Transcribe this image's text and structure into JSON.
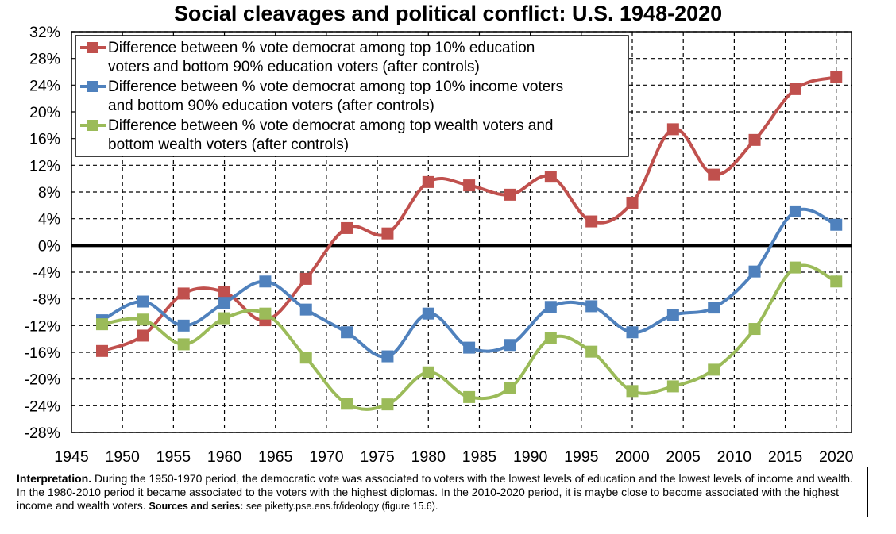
{
  "chart_data": {
    "type": "line",
    "title": "Social cleavages and political conflict: U.S. 1948-2020",
    "x": [
      1948,
      1952,
      1956,
      1960,
      1964,
      1968,
      1972,
      1976,
      1980,
      1984,
      1988,
      1992,
      1996,
      2000,
      2004,
      2008,
      2012,
      2016,
      2020
    ],
    "xlim": [
      1945,
      2020
    ],
    "xticks": [
      "1945",
      "1950",
      "1955",
      "1960",
      "1965",
      "1970",
      "1975",
      "1980",
      "1985",
      "1990",
      "1995",
      "2000",
      "2005",
      "2010",
      "2015",
      "2020"
    ],
    "ylim": [
      -28,
      32
    ],
    "yticks": [
      "-28%",
      "-24%",
      "-20%",
      "-16%",
      "-12%",
      "-8%",
      "-4%",
      "0%",
      "4%",
      "8%",
      "12%",
      "16%",
      "20%",
      "24%",
      "28%",
      "32%"
    ],
    "grid": true,
    "legend_position": "top-left",
    "series": [
      {
        "name": "Difference between % vote democrat among top 10% education voters and bottom 90% education voters (after controls)",
        "legend_lines": [
          "Difference between % vote democrat among top 10% education",
          "voters and bottom 90% education voters (after controls)"
        ],
        "color": "#C0504D",
        "values": [
          -15.8,
          -13.5,
          -7.2,
          -7.0,
          -11.2,
          -5.0,
          2.6,
          1.8,
          9.5,
          9.0,
          7.6,
          10.3,
          3.6,
          6.4,
          17.4,
          10.6,
          15.8,
          23.4,
          25.2
        ]
      },
      {
        "name": "Difference between % vote democrat among top 10% income voters and bottom 90% education voters (after controls)",
        "legend_lines": [
          "Difference between % vote democrat among top 10% income voters",
          "and bottom 90% education voters (after controls)"
        ],
        "color": "#4F81BD",
        "values": [
          -11.2,
          -8.4,
          -12.0,
          -8.6,
          -5.4,
          -9.6,
          -13.0,
          -16.6,
          -10.2,
          -15.3,
          -14.9,
          -9.2,
          -9.1,
          -13.0,
          -10.4,
          -9.3,
          -3.9,
          5.1,
          3.1
        ]
      },
      {
        "name": "Difference between % vote democrat among top wealth voters and bottom wealth voters (after controls)",
        "legend_lines": [
          "Difference between % vote democrat among top wealth voters and",
          "bottom wealth voters (after controls)"
        ],
        "color": "#9BBB59",
        "values": [
          -11.8,
          -11.1,
          -14.8,
          -10.9,
          -10.2,
          -16.8,
          -23.7,
          -23.8,
          -19.0,
          -22.7,
          -21.4,
          -13.9,
          -15.9,
          -21.8,
          -21.1,
          -18.6,
          -12.5,
          -3.3,
          -5.4
        ]
      }
    ]
  },
  "note": {
    "interpretation_label": "Interpretation.",
    "interpretation_text": " During the 1950-1970 period, the democratic vote was associated to voters with the lowest levels of education and the lowest levels of income and wealth. In the 1980-2010 period it became associated to the voters with the highest diplomas. In the 2010-2020 period, it is maybe close to become associated with the highest income and wealth voters. ",
    "sources_label": "Sources and series:",
    "sources_text": " see piketty.pse.ens.fr/ideology (figure 15.6)."
  }
}
